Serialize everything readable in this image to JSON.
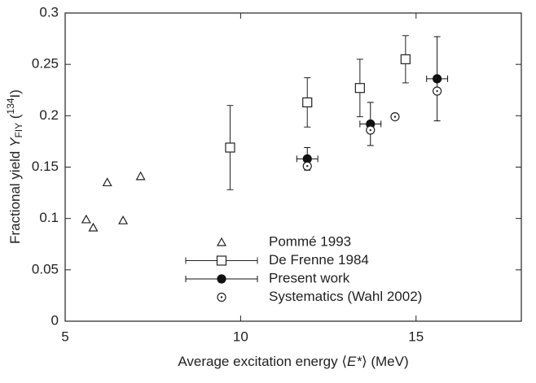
{
  "chart_data": {
    "type": "scatter",
    "xlabel": [
      "Average excitation energy ⟨",
      "E*",
      "⟩ (MeV)"
    ],
    "ylabel": [
      "Fractional yield ",
      "Y",
      "FIY",
      " (",
      "134",
      "I)"
    ],
    "xlim": [
      5,
      18
    ],
    "xticks": [
      5,
      10,
      15
    ],
    "ylim": [
      0,
      0.3
    ],
    "yticks": [
      0,
      0.05,
      0.1,
      0.15,
      0.2,
      0.25,
      0.3
    ],
    "grid": false,
    "legend": "bottom-center",
    "series": [
      {
        "name": "Pommé 1993",
        "marker": "triangle",
        "color": "#222",
        "x": [
          5.6,
          5.8,
          6.2,
          6.65,
          7.15
        ],
        "values": [
          0.099,
          0.091,
          0.135,
          0.098,
          0.141
        ]
      },
      {
        "name": "De Frenne 1984",
        "marker": "square",
        "color": "#222",
        "x": [
          9.7,
          11.9,
          13.4,
          14.7
        ],
        "values": [
          0.169,
          0.213,
          0.227,
          0.255
        ],
        "yerr": [
          0.041,
          0.024,
          0.028,
          0.023
        ]
      },
      {
        "name": "Present work",
        "marker": "filled-circle",
        "color": "#111",
        "x": [
          11.9,
          13.7,
          15.6
        ],
        "values": [
          0.158,
          0.192,
          0.236
        ],
        "yerr": [
          0.011,
          0.021,
          0.041
        ],
        "xerr": [
          0.3,
          0.3,
          0.3
        ]
      },
      {
        "name": "Systematics (Wahl 2002)",
        "marker": "dot-circle",
        "color": "#222",
        "x": [
          11.9,
          13.7,
          14.4,
          15.6
        ],
        "values": [
          0.151,
          0.186,
          0.199,
          0.224
        ]
      }
    ]
  }
}
